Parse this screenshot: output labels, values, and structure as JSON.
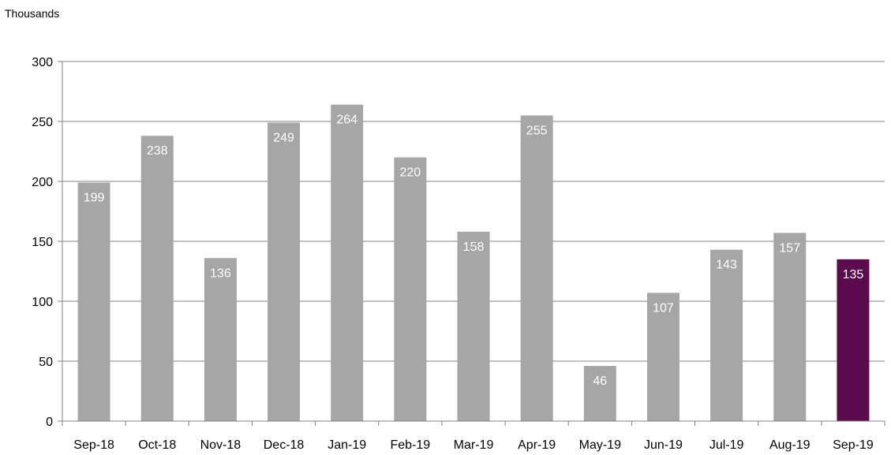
{
  "chart_data": {
    "type": "bar",
    "title": "",
    "xlabel": "",
    "ylabel": "",
    "units_label": "Thousands",
    "categories": [
      "Sep-18",
      "Oct-18",
      "Nov-18",
      "Dec-18",
      "Jan-19",
      "Feb-19",
      "Mar-19",
      "Apr-19",
      "May-19",
      "Jun-19",
      "Jul-19",
      "Aug-19",
      "Sep-19"
    ],
    "values": [
      199,
      238,
      136,
      249,
      264,
      220,
      158,
      255,
      46,
      107,
      143,
      157,
      135
    ],
    "ylim": [
      0,
      300
    ],
    "yticks": [
      0,
      50,
      100,
      150,
      200,
      250,
      300
    ],
    "grid": true,
    "legend": "none",
    "colors": {
      "bar": "#a6a6a6",
      "highlight_bar": "#5c0a4e",
      "gridline": "#808080",
      "axis": "#808080",
      "data_label": "#ffffff"
    },
    "highlight_index": 12
  }
}
